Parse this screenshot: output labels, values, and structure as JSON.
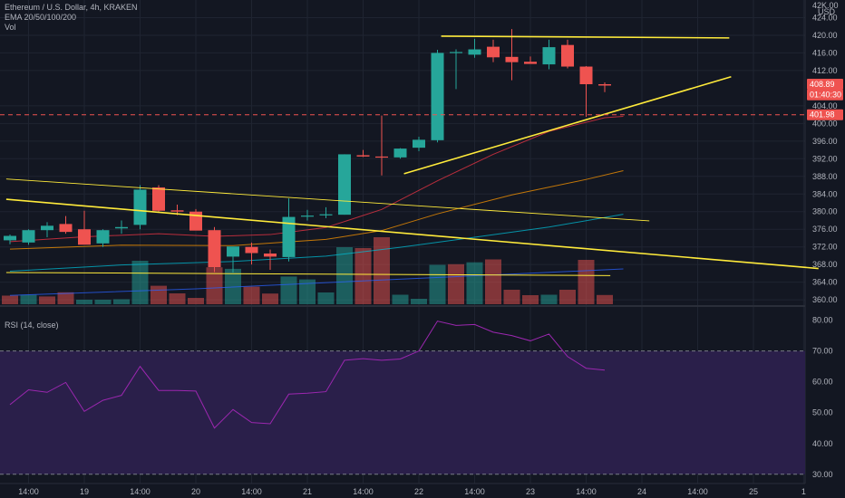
{
  "legend": {
    "symbol": "Ethereum / U.S. Dollar, 4h, KRAKEN",
    "ema": "EMA 20/50/100/200",
    "vol": "Vol",
    "rsi": "RSI (14, close)"
  },
  "currency": "USD",
  "top_label": "42K.00",
  "colors": {
    "background": "#131722",
    "grid": "#1f2431",
    "up": "#26a69a",
    "down": "#ef5350",
    "trendline": "#ffeb3b",
    "rsi": "#9c27b0",
    "rsi_band": "#2a1f4a"
  },
  "price_tags": [
    {
      "price": 408.89,
      "label": "408.89",
      "color": "#ef5350"
    },
    {
      "price": 406.5,
      "label": "01:40:30",
      "color": "#ef5350"
    },
    {
      "price": 401.98,
      "label": "401.98",
      "color": "#ef5350"
    }
  ],
  "chart_data": [
    {
      "type": "candlestick",
      "ylim": [
        359,
        428
      ],
      "y_ticks": [
        360,
        364,
        368,
        372,
        376,
        380,
        384,
        388,
        392,
        396,
        400,
        404,
        412,
        416,
        420,
        424
      ],
      "x_ticks": [
        {
          "i": 1,
          "label": "14:00"
        },
        {
          "i": 4,
          "label": "19"
        },
        {
          "i": 7,
          "label": "14:00"
        },
        {
          "i": 10,
          "label": "20"
        },
        {
          "i": 13,
          "label": "14:00"
        },
        {
          "i": 16,
          "label": "21"
        },
        {
          "i": 19,
          "label": "14:00"
        },
        {
          "i": 22,
          "label": "22"
        },
        {
          "i": 25,
          "label": "14:00"
        },
        {
          "i": 28,
          "label": "23"
        },
        {
          "i": 31,
          "label": "14:00"
        },
        {
          "i": 34,
          "label": "24"
        },
        {
          "i": 37,
          "label": "14:00"
        },
        {
          "i": 40,
          "label": "25"
        },
        {
          "i": 42.7,
          "label": "1"
        }
      ],
      "candles": [
        [
          373.5,
          374.8,
          372.6,
          374.5
        ],
        [
          373.0,
          376.0,
          372.5,
          375.8
        ],
        [
          375.8,
          377.6,
          374.2,
          376.8
        ],
        [
          377.2,
          379.0,
          375.0,
          375.4
        ],
        [
          376.0,
          380.2,
          373.0,
          372.5
        ],
        [
          372.8,
          376.0,
          372.0,
          375.8
        ],
        [
          376.2,
          378.0,
          375.0,
          376.5
        ],
        [
          377.0,
          386.0,
          376.0,
          385.0
        ],
        [
          385.5,
          386.0,
          380.0,
          380.2
        ],
        [
          380.3,
          381.6,
          379.2,
          380.0
        ],
        [
          380.0,
          380.6,
          375.8,
          375.7
        ],
        [
          375.8,
          376.5,
          366.3,
          367.4
        ],
        [
          369.8,
          372.0,
          366.2,
          372.1
        ],
        [
          372.0,
          373.0,
          368.0,
          370.6
        ],
        [
          370.5,
          371.4,
          366.8,
          369.8
        ],
        [
          369.7,
          383.0,
          368.7,
          378.8
        ],
        [
          379.0,
          380.4,
          378.0,
          379.1
        ],
        [
          379.3,
          381.0,
          378.5,
          379.4
        ],
        [
          379.3,
          393.0,
          379.3,
          393.0
        ],
        [
          392.8,
          394.0,
          392.4,
          392.5
        ],
        [
          392.5,
          401.8,
          388.2,
          392.3
        ],
        [
          392.3,
          394.4,
          392.0,
          394.3
        ],
        [
          394.5,
          397.0,
          393.7,
          396.3
        ],
        [
          396.2,
          416.7,
          395.7,
          416.0
        ],
        [
          416.2,
          416.8,
          407.8,
          416.2
        ],
        [
          415.6,
          419.2,
          414.9,
          416.8
        ],
        [
          417.4,
          419.0,
          413.9,
          415.0
        ],
        [
          415.1,
          421.4,
          409.8,
          413.9
        ],
        [
          414.0,
          415.2,
          413.8,
          413.5
        ],
        [
          413.4,
          419.0,
          412.3,
          417.3
        ],
        [
          417.8,
          419.0,
          412.5,
          412.9
        ],
        [
          412.9,
          413.0,
          401.5,
          408.9
        ],
        [
          408.9,
          409.3,
          407.1,
          408.6
        ]
      ],
      "volume": [
        {
          "v": 9.5,
          "d": "down"
        },
        {
          "v": 10.5,
          "d": "up"
        },
        {
          "v": 8.6,
          "d": "down"
        },
        {
          "v": 13.2,
          "d": "down"
        },
        {
          "v": 5.0,
          "d": "up"
        },
        {
          "v": 5.0,
          "d": "up"
        },
        {
          "v": 5.5,
          "d": "up"
        },
        {
          "v": 48.0,
          "d": "up"
        },
        {
          "v": 20.4,
          "d": "down"
        },
        {
          "v": 12.0,
          "d": "down"
        },
        {
          "v": 7.0,
          "d": "down"
        },
        {
          "v": 40.8,
          "d": "down"
        },
        {
          "v": 39.1,
          "d": "up"
        },
        {
          "v": 19.4,
          "d": "down"
        },
        {
          "v": 11.8,
          "d": "down"
        },
        {
          "v": 30.6,
          "d": "up"
        },
        {
          "v": 27.4,
          "d": "up"
        },
        {
          "v": 13.0,
          "d": "up"
        },
        {
          "v": 63.0,
          "d": "up"
        },
        {
          "v": 62.0,
          "d": "down"
        },
        {
          "v": 74.0,
          "d": "down"
        },
        {
          "v": 10.5,
          "d": "up"
        },
        {
          "v": 6.0,
          "d": "up"
        },
        {
          "v": 43.5,
          "d": "up"
        },
        {
          "v": 44.2,
          "d": "down"
        },
        {
          "v": 46.3,
          "d": "up"
        },
        {
          "v": 49.5,
          "d": "down"
        },
        {
          "v": 16.0,
          "d": "down"
        },
        {
          "v": 10.0,
          "d": "down"
        },
        {
          "v": 10.5,
          "d": "up"
        },
        {
          "v": 16.0,
          "d": "down"
        },
        {
          "v": 49.0,
          "d": "down"
        },
        {
          "v": 10.2,
          "d": "down"
        }
      ],
      "ema_lines": [
        {
          "color": "#f23645",
          "points": [
            [
              0,
              373.2
            ],
            [
              4,
              374.3
            ],
            [
              8,
              375.0
            ],
            [
              11,
              374.4
            ],
            [
              14,
              374.8
            ],
            [
              17,
              376.4
            ],
            [
              20,
              380.5
            ],
            [
              23,
              387.0
            ],
            [
              26,
              393.0
            ],
            [
              29,
              398.2
            ],
            [
              32,
              401.3
            ],
            [
              33,
              401.6
            ]
          ]
        },
        {
          "color": "#ff9800",
          "points": [
            [
              0,
              371.5
            ],
            [
              6,
              372.4
            ],
            [
              12,
              372.3
            ],
            [
              17,
              373.7
            ],
            [
              20,
              375.7
            ],
            [
              23,
              379.5
            ],
            [
              27,
              383.8
            ],
            [
              31,
              387.3
            ],
            [
              33,
              389.3
            ]
          ]
        },
        {
          "color": "#00bcd4",
          "points": [
            [
              0,
              366.5
            ],
            [
              6,
              367.9
            ],
            [
              12,
              368.7
            ],
            [
              17,
              369.9
            ],
            [
              21,
              371.9
            ],
            [
              25,
              374.2
            ],
            [
              29,
              376.5
            ],
            [
              33,
              379.4
            ]
          ]
        },
        {
          "color": "#2962ff",
          "points": [
            [
              0,
              361.0
            ],
            [
              10,
              362.5
            ],
            [
              20,
              364.5
            ],
            [
              33,
              367.0
            ]
          ]
        }
      ],
      "trendlines": [
        {
          "from": [
            -0.2,
            387.4
          ],
          "to": [
            34.4,
            377.9
          ],
          "width": 0.9
        },
        {
          "from": [
            -0.2,
            382.8
          ],
          "to": [
            43.5,
            367.1
          ],
          "width": 1.6
        },
        {
          "from": [
            21.2,
            388.6
          ],
          "to": [
            38.8,
            410.6
          ],
          "width": 1.6
        },
        {
          "from": [
            23.2,
            419.8
          ],
          "to": [
            38.7,
            419.4
          ],
          "width": 1.6
        },
        {
          "from": [
            -0.2,
            366.2
          ],
          "to": [
            32.3,
            365.5
          ],
          "width": 1.0
        }
      ],
      "dashed_level": {
        "price": 401.98,
        "color": "#ef5350"
      }
    },
    {
      "type": "line",
      "title": "RSI (14, close)",
      "ylim": [
        27,
        84
      ],
      "y_ticks": [
        30.0,
        40.0,
        50.0,
        60.0,
        70.0,
        80.0
      ],
      "band": [
        30,
        70
      ],
      "values": [
        52.6,
        57.4,
        56.6,
        59.8,
        50.4,
        54.0,
        55.6,
        65.0,
        57.2,
        57.2,
        57.0,
        45.0,
        51.0,
        46.8,
        46.4,
        56.0,
        56.3,
        56.8,
        67.0,
        67.5,
        67.0,
        67.4,
        70.0,
        79.7,
        78.3,
        78.6,
        76.1,
        75.0,
        73.3,
        75.5,
        68.2,
        64.4,
        63.8
      ]
    }
  ]
}
